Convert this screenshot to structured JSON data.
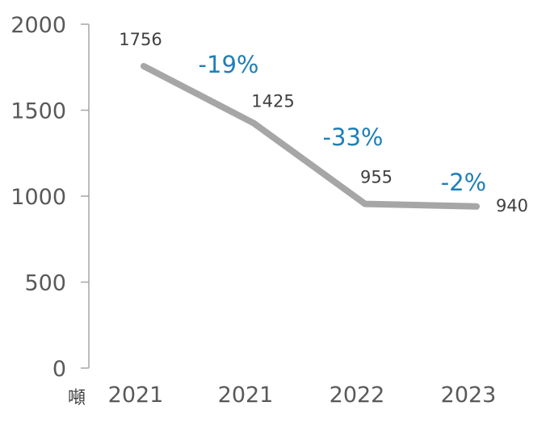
{
  "chart_data": {
    "type": "line",
    "categories": [
      "2021",
      "2021",
      "2022",
      "2023"
    ],
    "series": [
      {
        "values": [
          1756,
          1425,
          955,
          940
        ]
      }
    ],
    "data_labels": [
      "1756",
      "1425",
      "955",
      "940"
    ],
    "change_annotations": [
      "-19%",
      "-33%",
      "-2%"
    ],
    "ylim": [
      0,
      2000
    ],
    "yticks": [
      0,
      500,
      1000,
      1500,
      2000
    ],
    "yunit": "噸",
    "line_color": "#a6a6a6",
    "annotation_color": "#1f7fb6",
    "grid": false,
    "legend": "none"
  }
}
